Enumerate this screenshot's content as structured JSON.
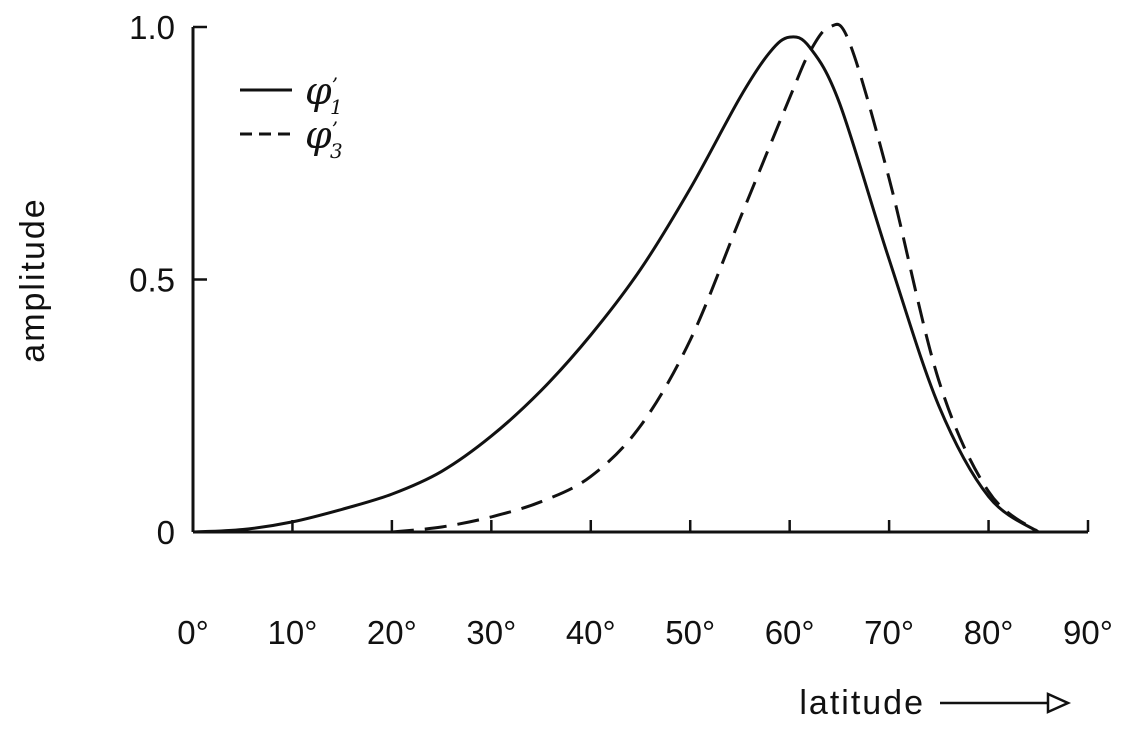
{
  "chart_data": {
    "type": "line",
    "xlabel": "latitude",
    "ylabel": "amplitude",
    "xlim": [
      0,
      90
    ],
    "ylim": [
      0,
      1.0
    ],
    "grid": false,
    "legend_position": "top-left",
    "x_ticks": [
      0,
      10,
      20,
      30,
      40,
      50,
      60,
      70,
      80,
      90
    ],
    "x_tick_labels": [
      "0°",
      "10°",
      "20°",
      "30°",
      "40°",
      "50°",
      "60°",
      "70°",
      "80°",
      "90°"
    ],
    "y_ticks": [
      0,
      0.5,
      1.0
    ],
    "y_tick_labels": [
      "0",
      "0.5",
      "1.0"
    ],
    "series": [
      {
        "name": "φ′₁",
        "legend_base": "φ",
        "legend_sub": "1",
        "style": "solid",
        "x": [
          0,
          5,
          10,
          15,
          20,
          25,
          30,
          35,
          40,
          45,
          50,
          55,
          58,
          60,
          62,
          65,
          70,
          75,
          80,
          85
        ],
        "y": [
          0.0,
          0.005,
          0.02,
          0.045,
          0.075,
          0.12,
          0.19,
          0.28,
          0.39,
          0.52,
          0.68,
          0.86,
          0.95,
          0.98,
          0.96,
          0.85,
          0.54,
          0.25,
          0.07,
          0.0
        ]
      },
      {
        "name": "φ′₃",
        "legend_base": "φ",
        "legend_sub": "3",
        "style": "dashed",
        "x": [
          20,
          25,
          30,
          35,
          40,
          45,
          50,
          55,
          60,
          62,
          64,
          66,
          70,
          75,
          80,
          85
        ],
        "y": [
          0.0,
          0.01,
          0.03,
          0.06,
          0.11,
          0.21,
          0.38,
          0.62,
          0.86,
          0.95,
          1.0,
          0.97,
          0.7,
          0.3,
          0.08,
          0.0
        ]
      }
    ]
  }
}
